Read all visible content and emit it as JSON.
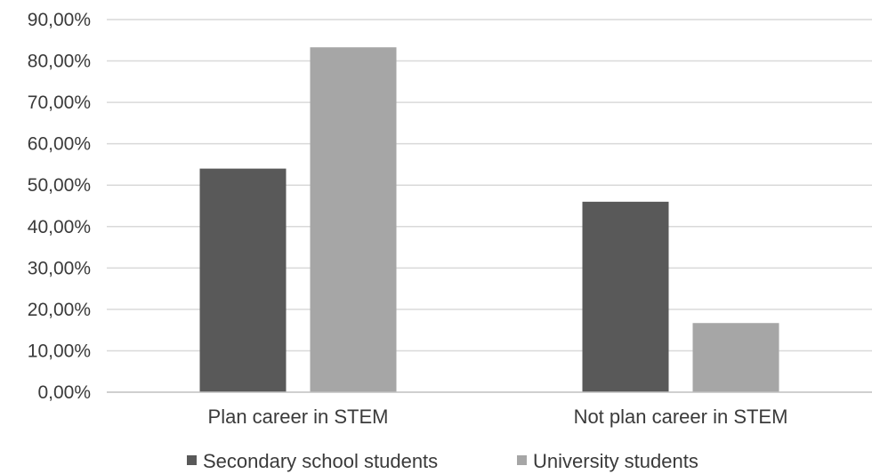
{
  "chart_data": {
    "type": "bar",
    "title": "",
    "xlabel": "",
    "ylabel": "",
    "categories": [
      "Plan career in STEM",
      "Not plan career in STEM"
    ],
    "series": [
      {
        "name": "Secondary school students",
        "values": [
          54.0,
          46.0
        ],
        "color": "#595959"
      },
      {
        "name": "University students",
        "values": [
          83.3,
          16.7
        ],
        "color": "#a6a6a6"
      }
    ],
    "ylim": [
      0,
      90
    ],
    "y_ticks": [
      0,
      10,
      20,
      30,
      40,
      50,
      60,
      70,
      80,
      90
    ],
    "y_tick_labels": [
      "0,00%",
      "10,00%",
      "20,00%",
      "30,00%",
      "40,00%",
      "50,00%",
      "60,00%",
      "70,00%",
      "80,00%",
      "90,00%"
    ],
    "grid": true,
    "legend_position": "bottom"
  }
}
